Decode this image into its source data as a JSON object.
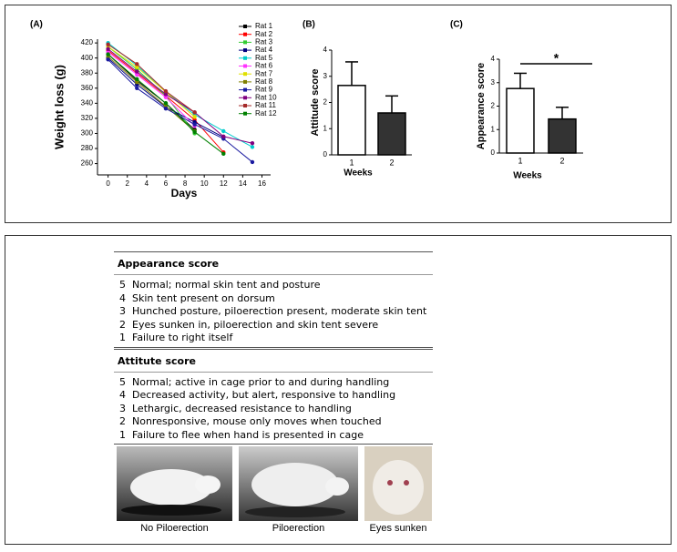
{
  "chart_data": [
    {
      "type": "line",
      "panel_label": "(A)",
      "xlabel": "Days",
      "ylabel": "Weight loss (g)",
      "x": [
        0,
        3,
        6,
        9,
        12,
        15
      ],
      "xlim": [
        -1.1,
        16.9
      ],
      "xticks": [
        0,
        2,
        4,
        6,
        8,
        10,
        12,
        14,
        16
      ],
      "ylim": [
        245,
        425
      ],
      "yticks": [
        260,
        280,
        300,
        320,
        340,
        360,
        380,
        400,
        420
      ],
      "series": [
        {
          "name": "Rat 1",
          "color": "#000000",
          "values": [
            405,
            370,
            340,
            305,
            null,
            null
          ]
        },
        {
          "name": "Rat 2",
          "color": "#ff0000",
          "values": [
            410,
            380,
            350,
            318,
            275,
            null
          ]
        },
        {
          "name": "Rat 3",
          "color": "#33cc33",
          "values": [
            415,
            385,
            350,
            300,
            null,
            null
          ]
        },
        {
          "name": "Rat 4",
          "color": "#000080",
          "values": [
            400,
            365,
            335,
            315,
            295,
            null
          ]
        },
        {
          "name": "Rat 5",
          "color": "#00cccc",
          "values": [
            420,
            390,
            355,
            325,
            303,
            282
          ]
        },
        {
          "name": "Rat 6",
          "color": "#ff33ff",
          "values": [
            408,
            378,
            348,
            310,
            null,
            null
          ]
        },
        {
          "name": "Rat 7",
          "color": "#e0e000",
          "values": [
            415,
            388,
            355,
            322,
            null,
            null
          ]
        },
        {
          "name": "Rat 8",
          "color": "#808000",
          "values": [
            402,
            368,
            336,
            303,
            null,
            null
          ]
        },
        {
          "name": "Rat 9",
          "color": "#1a1aa0",
          "values": [
            398,
            360,
            333,
            312,
            293,
            262
          ]
        },
        {
          "name": "Rat 10",
          "color": "#800080",
          "values": [
            412,
            382,
            352,
            328,
            296,
            287
          ]
        },
        {
          "name": "Rat 11",
          "color": "#a52a2a",
          "values": [
            418,
            392,
            356,
            328,
            null,
            null
          ]
        },
        {
          "name": "Rat 12",
          "color": "#008000",
          "values": [
            405,
            372,
            340,
            302,
            273,
            null
          ]
        }
      ]
    },
    {
      "type": "bar",
      "panel_label": "(B)",
      "xlabel": "Weeks",
      "ylabel": "Attitude score",
      "categories": [
        "1",
        "2"
      ],
      "values": [
        2.65,
        1.6
      ],
      "errors": [
        0.9,
        0.65
      ],
      "colors": [
        "#ffffff",
        "#333333"
      ],
      "ylim": [
        0,
        4
      ],
      "yticks": [
        0,
        1,
        2,
        3,
        4
      ]
    },
    {
      "type": "bar",
      "panel_label": "(C)",
      "xlabel": "Weeks",
      "ylabel": "Appearance score",
      "categories": [
        "1",
        "2"
      ],
      "values": [
        2.75,
        1.45
      ],
      "errors": [
        0.65,
        0.5
      ],
      "colors": [
        "#ffffff",
        "#333333"
      ],
      "ylim": [
        0,
        4
      ],
      "yticks": [
        0,
        1,
        2,
        3,
        4
      ],
      "annotation": "*"
    }
  ],
  "table": {
    "sections": [
      {
        "title": "Appearance score",
        "rows": [
          [
            "5",
            "Normal; normal skin tent and posture"
          ],
          [
            "4",
            "Skin tent present on dorsum"
          ],
          [
            "3",
            "Hunched posture, piloerection present, moderate skin tent"
          ],
          [
            "2",
            "Eyes sunken in, piloerection and skin tent severe"
          ],
          [
            "1",
            "Failure to right itself"
          ]
        ]
      },
      {
        "title": "Attitute score",
        "rows": [
          [
            "5",
            "Normal; active in cage prior to and during handling"
          ],
          [
            "4",
            "Decreased activity, but alert, responsive to handling"
          ],
          [
            "3",
            "Lethargic, decreased resistance to handling"
          ],
          [
            "2",
            "Nonresponsive, mouse only moves when touched"
          ],
          [
            "1",
            "Failure to flee when hand is presented in cage"
          ]
        ]
      }
    ]
  },
  "photos": [
    {
      "caption": "No Piloerection"
    },
    {
      "caption": "Piloerection"
    },
    {
      "caption": "Eyes sunken"
    }
  ]
}
